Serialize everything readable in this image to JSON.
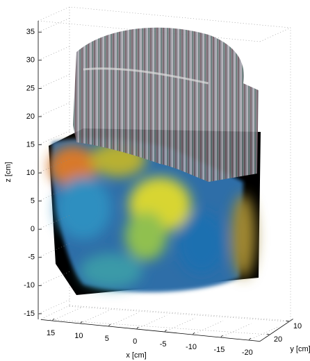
{
  "chart_data": {
    "type": "volume",
    "xlabel": "x [cm]",
    "ylabel": "y [cm]",
    "zlabel": "z [cm]",
    "xlim": [
      17,
      -22
    ],
    "xticks": [
      15,
      10,
      5,
      0,
      -5,
      -10,
      -15,
      -20
    ],
    "ylim": [
      8,
      25
    ],
    "yticks": [
      10,
      20
    ],
    "zlim": [
      -16,
      37
    ],
    "zticks": [
      -15,
      -10,
      -5,
      0,
      5,
      10,
      15,
      20,
      25,
      30,
      35
    ],
    "grid": true
  }
}
